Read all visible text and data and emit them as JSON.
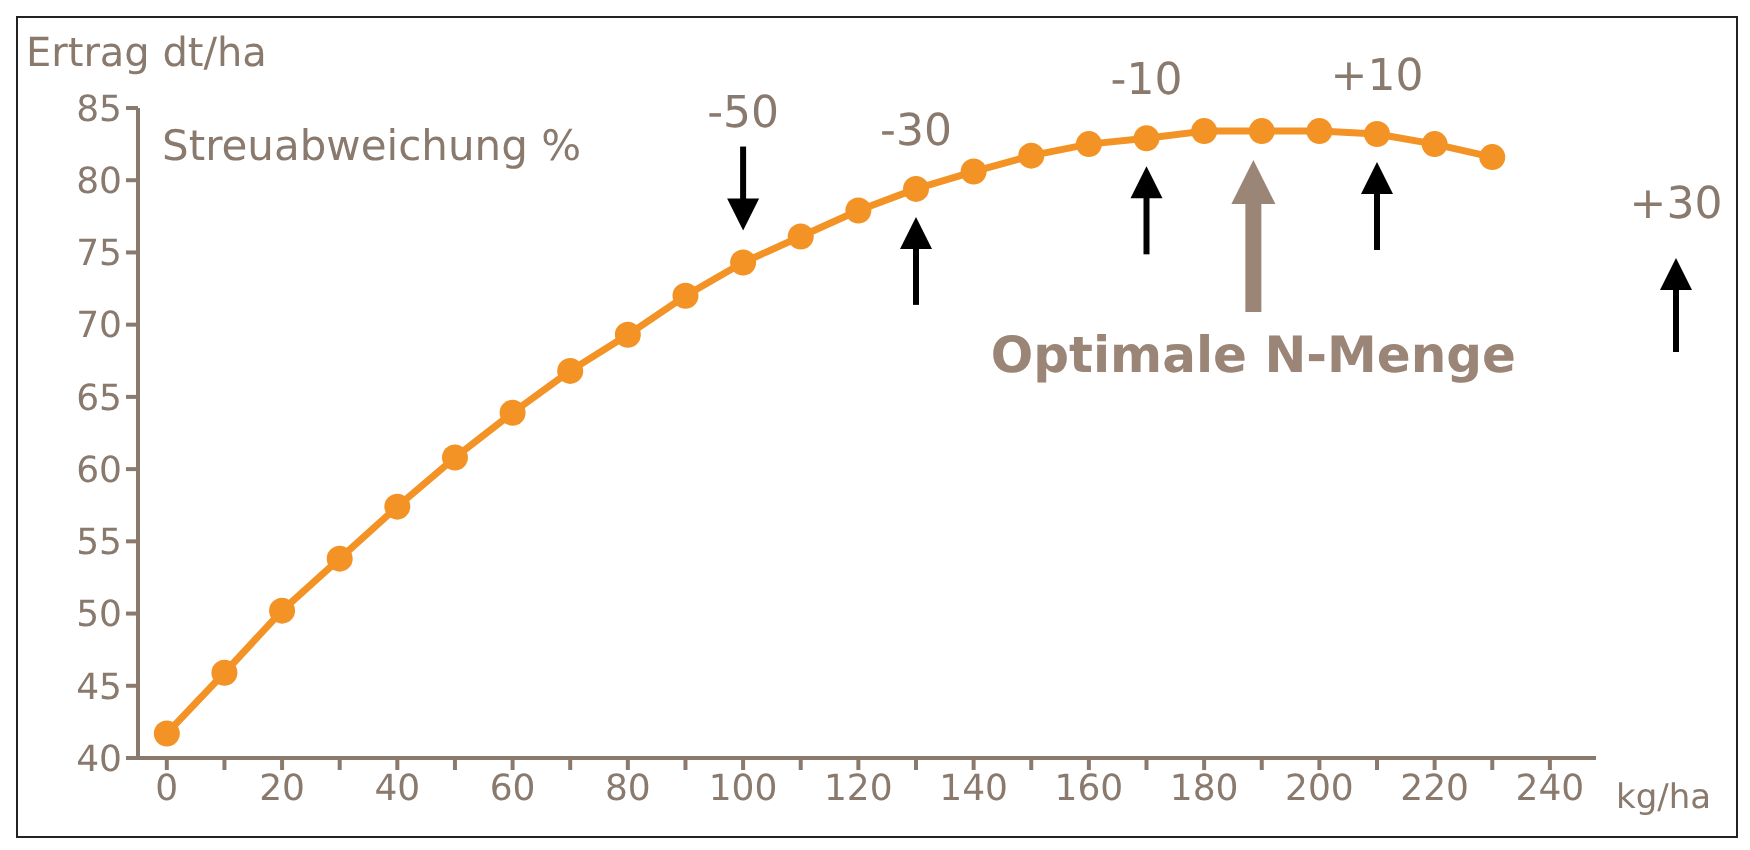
{
  "chart_data": {
    "type": "line",
    "xlabel": "kg/ha",
    "ylabel": "Ertrag dt/ha",
    "x": [
      0,
      10,
      20,
      30,
      40,
      50,
      60,
      70,
      80,
      90,
      100,
      110,
      120,
      130,
      140,
      150,
      160,
      170,
      180,
      190,
      200,
      210,
      220,
      230
    ],
    "series": [
      {
        "color": "#f39325",
        "values": [
          41.7,
          45.9,
          50.2,
          53.8,
          57.4,
          60.8,
          63.9,
          66.8,
          69.3,
          72.0,
          74.3,
          76.1,
          77.9,
          79.4,
          80.6,
          81.7,
          82.5,
          82.9,
          83.4,
          83.4,
          83.4,
          83.2,
          82.5,
          81.6
        ]
      }
    ],
    "xlim": [
      -5,
      248
    ],
    "xticks": [
      0,
      {
        "value": 10,
        "label": null
      },
      20,
      {
        "value": 30,
        "label": null
      },
      40,
      {
        "value": 50,
        "label": null
      },
      60,
      {
        "value": 70,
        "label": null
      },
      80,
      {
        "value": 90,
        "label": null
      },
      100,
      {
        "value": 110,
        "label": null
      },
      120,
      {
        "value": 130,
        "label": null
      },
      140,
      {
        "value": 150,
        "label": null
      },
      160,
      {
        "value": 170,
        "label": null
      },
      180,
      {
        "value": 190,
        "label": null
      },
      200,
      {
        "value": 210,
        "label": null
      },
      220,
      {
        "value": 230,
        "label": null
      },
      240
    ],
    "ylim": [
      40,
      85
    ],
    "yticks": [
      40,
      45,
      50,
      55,
      60,
      65,
      70,
      75,
      80,
      85
    ],
    "marker": "circle",
    "line_style": "solid",
    "annotations": [
      "Streuabweichung %",
      {
        "text": "-50",
        "x": 100,
        "y": 74.3
      },
      {
        "text": "-30",
        "x": 130,
        "y": 79.4
      },
      {
        "text": "-10",
        "x": 170,
        "y": 82.9
      },
      {
        "text": "+10",
        "x": 210,
        "y": 83.2
      },
      "Optimale N-Menge",
      "+30"
    ]
  }
}
